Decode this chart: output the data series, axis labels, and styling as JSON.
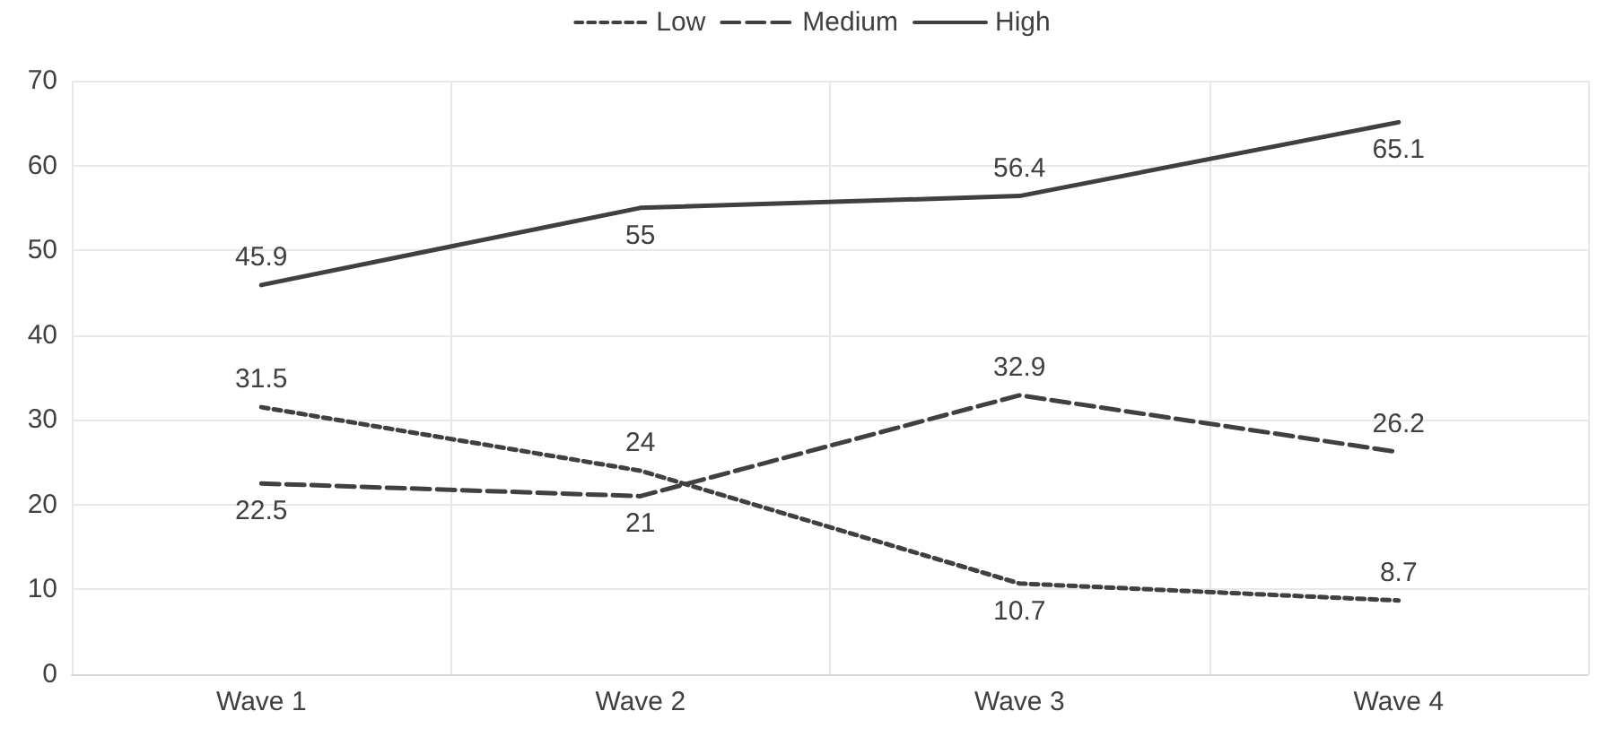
{
  "chart_data": {
    "type": "line",
    "categories": [
      "Wave 1",
      "Wave 2",
      "Wave 3",
      "Wave 4"
    ],
    "series": [
      {
        "name": "Low",
        "color": "#404040",
        "line_style": "dotted",
        "values": [
          31.5,
          24,
          10.7,
          8.7
        ]
      },
      {
        "name": "Medium",
        "color": "#404040",
        "line_style": "dashed",
        "values": [
          22.5,
          21,
          32.9,
          26.2
        ]
      },
      {
        "name": "High",
        "color": "#404040",
        "line_style": "solid",
        "values": [
          45.9,
          55,
          56.4,
          65.1
        ]
      }
    ],
    "ylim": [
      0,
      70
    ],
    "yticks": [
      0,
      10,
      20,
      30,
      40,
      50,
      60,
      70
    ],
    "grid": true,
    "legend": "top",
    "data_labels": true,
    "marker": "none"
  }
}
